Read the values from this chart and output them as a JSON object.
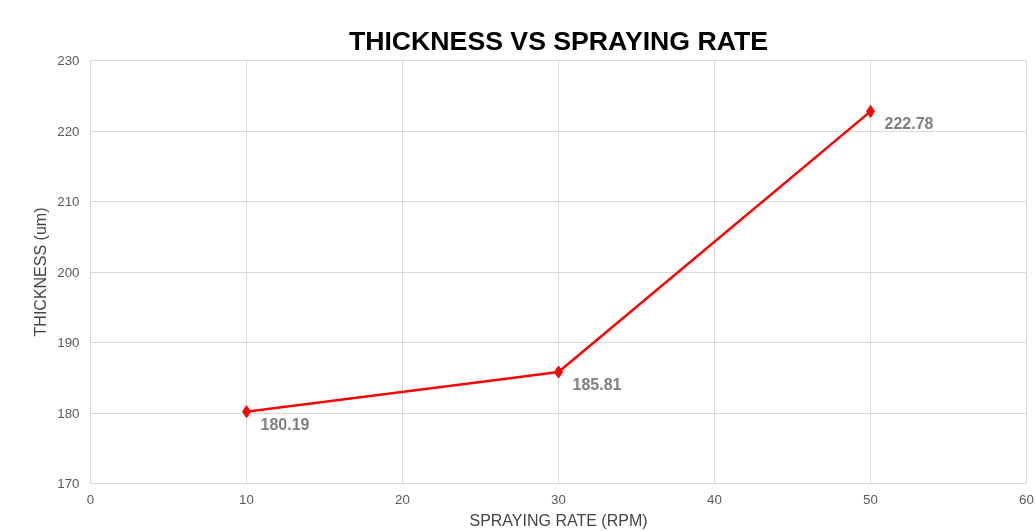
{
  "chart_data": {
    "type": "line",
    "title": "THICKNESS VS SPRAYING RATE",
    "xlabel": "SPRAYING RATE (RPM)",
    "ylabel": "THICKNESS (um)",
    "x": [
      10,
      30,
      50
    ],
    "series": [
      {
        "color": "#ff0000",
        "values": [
          180.19,
          185.81,
          222.78
        ]
      }
    ],
    "xlim": [
      0,
      60
    ],
    "xticks": [
      0,
      10,
      20,
      30,
      40,
      50,
      60
    ],
    "ylim": [
      170,
      230
    ],
    "yticks": [
      170,
      180,
      190,
      200,
      210,
      220,
      230
    ],
    "grid": true,
    "marker": "diamond",
    "line_style": "solid",
    "data_labels": true
  }
}
